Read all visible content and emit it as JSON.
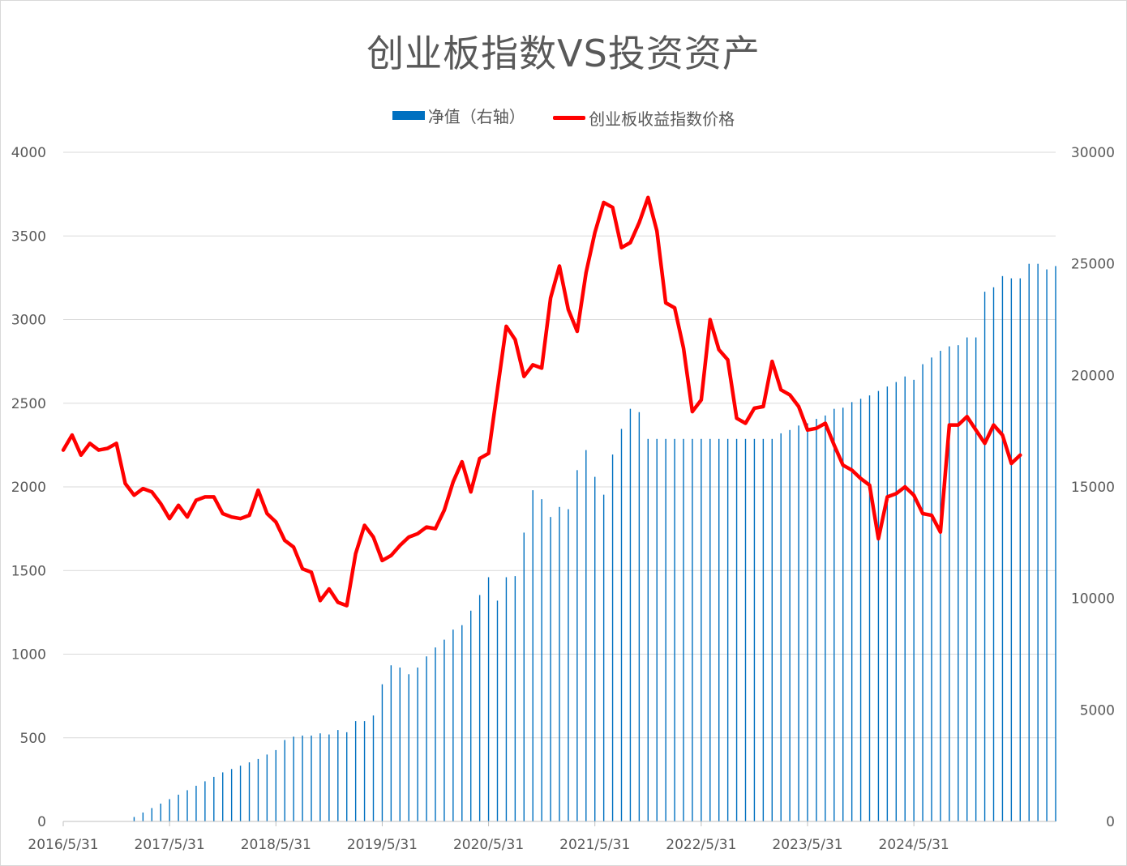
{
  "chart_data": {
    "type": "bar+line",
    "title": "创业板指数VS投资资产",
    "legend_position": "top-center",
    "grid": true,
    "x_labels": [
      "2016/5/31",
      "2017/5/31",
      "2018/5/31",
      "2019/5/31",
      "2020/5/31",
      "2021/5/31",
      "2022/5/31",
      "2023/5/31",
      "2024/5/31"
    ],
    "y_left": {
      "ticks": [
        0,
        500,
        1000,
        1500,
        2000,
        2500,
        3000,
        3500,
        4000
      ],
      "range": [
        0,
        4000
      ]
    },
    "y_right": {
      "ticks": [
        0,
        5000,
        10000,
        15000,
        20000,
        25000,
        30000
      ],
      "range": [
        0,
        30000
      ]
    },
    "series": [
      {
        "name": "净值（右轴）",
        "type": "bar",
        "axis": "right",
        "color": "#0070c0",
        "start": "2016/5/31",
        "step": "month",
        "values": [
          0,
          0,
          0,
          0,
          0,
          0,
          0,
          0,
          200,
          400,
          600,
          800,
          1000,
          1200,
          1400,
          1600,
          1800,
          2000,
          2200,
          2350,
          2500,
          2650,
          2800,
          3000,
          3200,
          3650,
          3800,
          3850,
          3850,
          3950,
          3900,
          4100,
          4000,
          4500,
          4500,
          4750,
          6150,
          7000,
          6900,
          6600,
          6900,
          7400,
          7800,
          8150,
          8600,
          8800,
          9450,
          10150,
          10950,
          9900,
          10950,
          11000,
          12950,
          14850,
          14450,
          13650,
          14100,
          14000,
          15750,
          16650,
          15450,
          14650,
          16450,
          17600,
          18500,
          18350,
          17150,
          17150,
          17150,
          17150,
          17150,
          17150,
          17150,
          17150,
          17150,
          17150,
          17150,
          17150,
          17150,
          17150,
          17150,
          17400,
          17550,
          17750,
          17850,
          18050,
          18200,
          18500,
          18550,
          18800,
          18950,
          19100,
          19300,
          19500,
          19700,
          19950,
          19800,
          20500,
          20800,
          21100,
          21300,
          21350,
          21700,
          21700,
          23750,
          23950,
          24450,
          24350,
          24350,
          25000,
          25000,
          24750,
          24900
        ]
      },
      {
        "name": "创业板收益指数价格",
        "type": "line",
        "axis": "left",
        "color": "#ff0000",
        "start": "2016/5/31",
        "step": "month",
        "values": [
          2220,
          2310,
          2190,
          2260,
          2220,
          2230,
          2260,
          2020,
          1950,
          1990,
          1970,
          1900,
          1810,
          1890,
          1820,
          1920,
          1940,
          1940,
          1840,
          1820,
          1810,
          1830,
          1980,
          1840,
          1790,
          1680,
          1640,
          1510,
          1490,
          1320,
          1390,
          1310,
          1290,
          1600,
          1770,
          1700,
          1560,
          1590,
          1650,
          1700,
          1720,
          1760,
          1750,
          1860,
          2030,
          2150,
          1970,
          2170,
          2200,
          2580,
          2960,
          2880,
          2660,
          2730,
          2710,
          3130,
          3320,
          3060,
          2930,
          3280,
          3520,
          3700,
          3670,
          3430,
          3460,
          3580,
          3730,
          3530,
          3100,
          3070,
          2830,
          2450,
          2520,
          3000,
          2820,
          2760,
          2410,
          2380,
          2470,
          2480,
          2750,
          2580,
          2550,
          2480,
          2340,
          2350,
          2380,
          2250,
          2130,
          2100,
          2050,
          2010,
          1690,
          1940,
          1960,
          2000,
          1950,
          1840,
          1830,
          1730,
          2370,
          2370,
          2420,
          2340,
          2260,
          2370,
          2310,
          2140,
          2190
        ]
      }
    ]
  }
}
